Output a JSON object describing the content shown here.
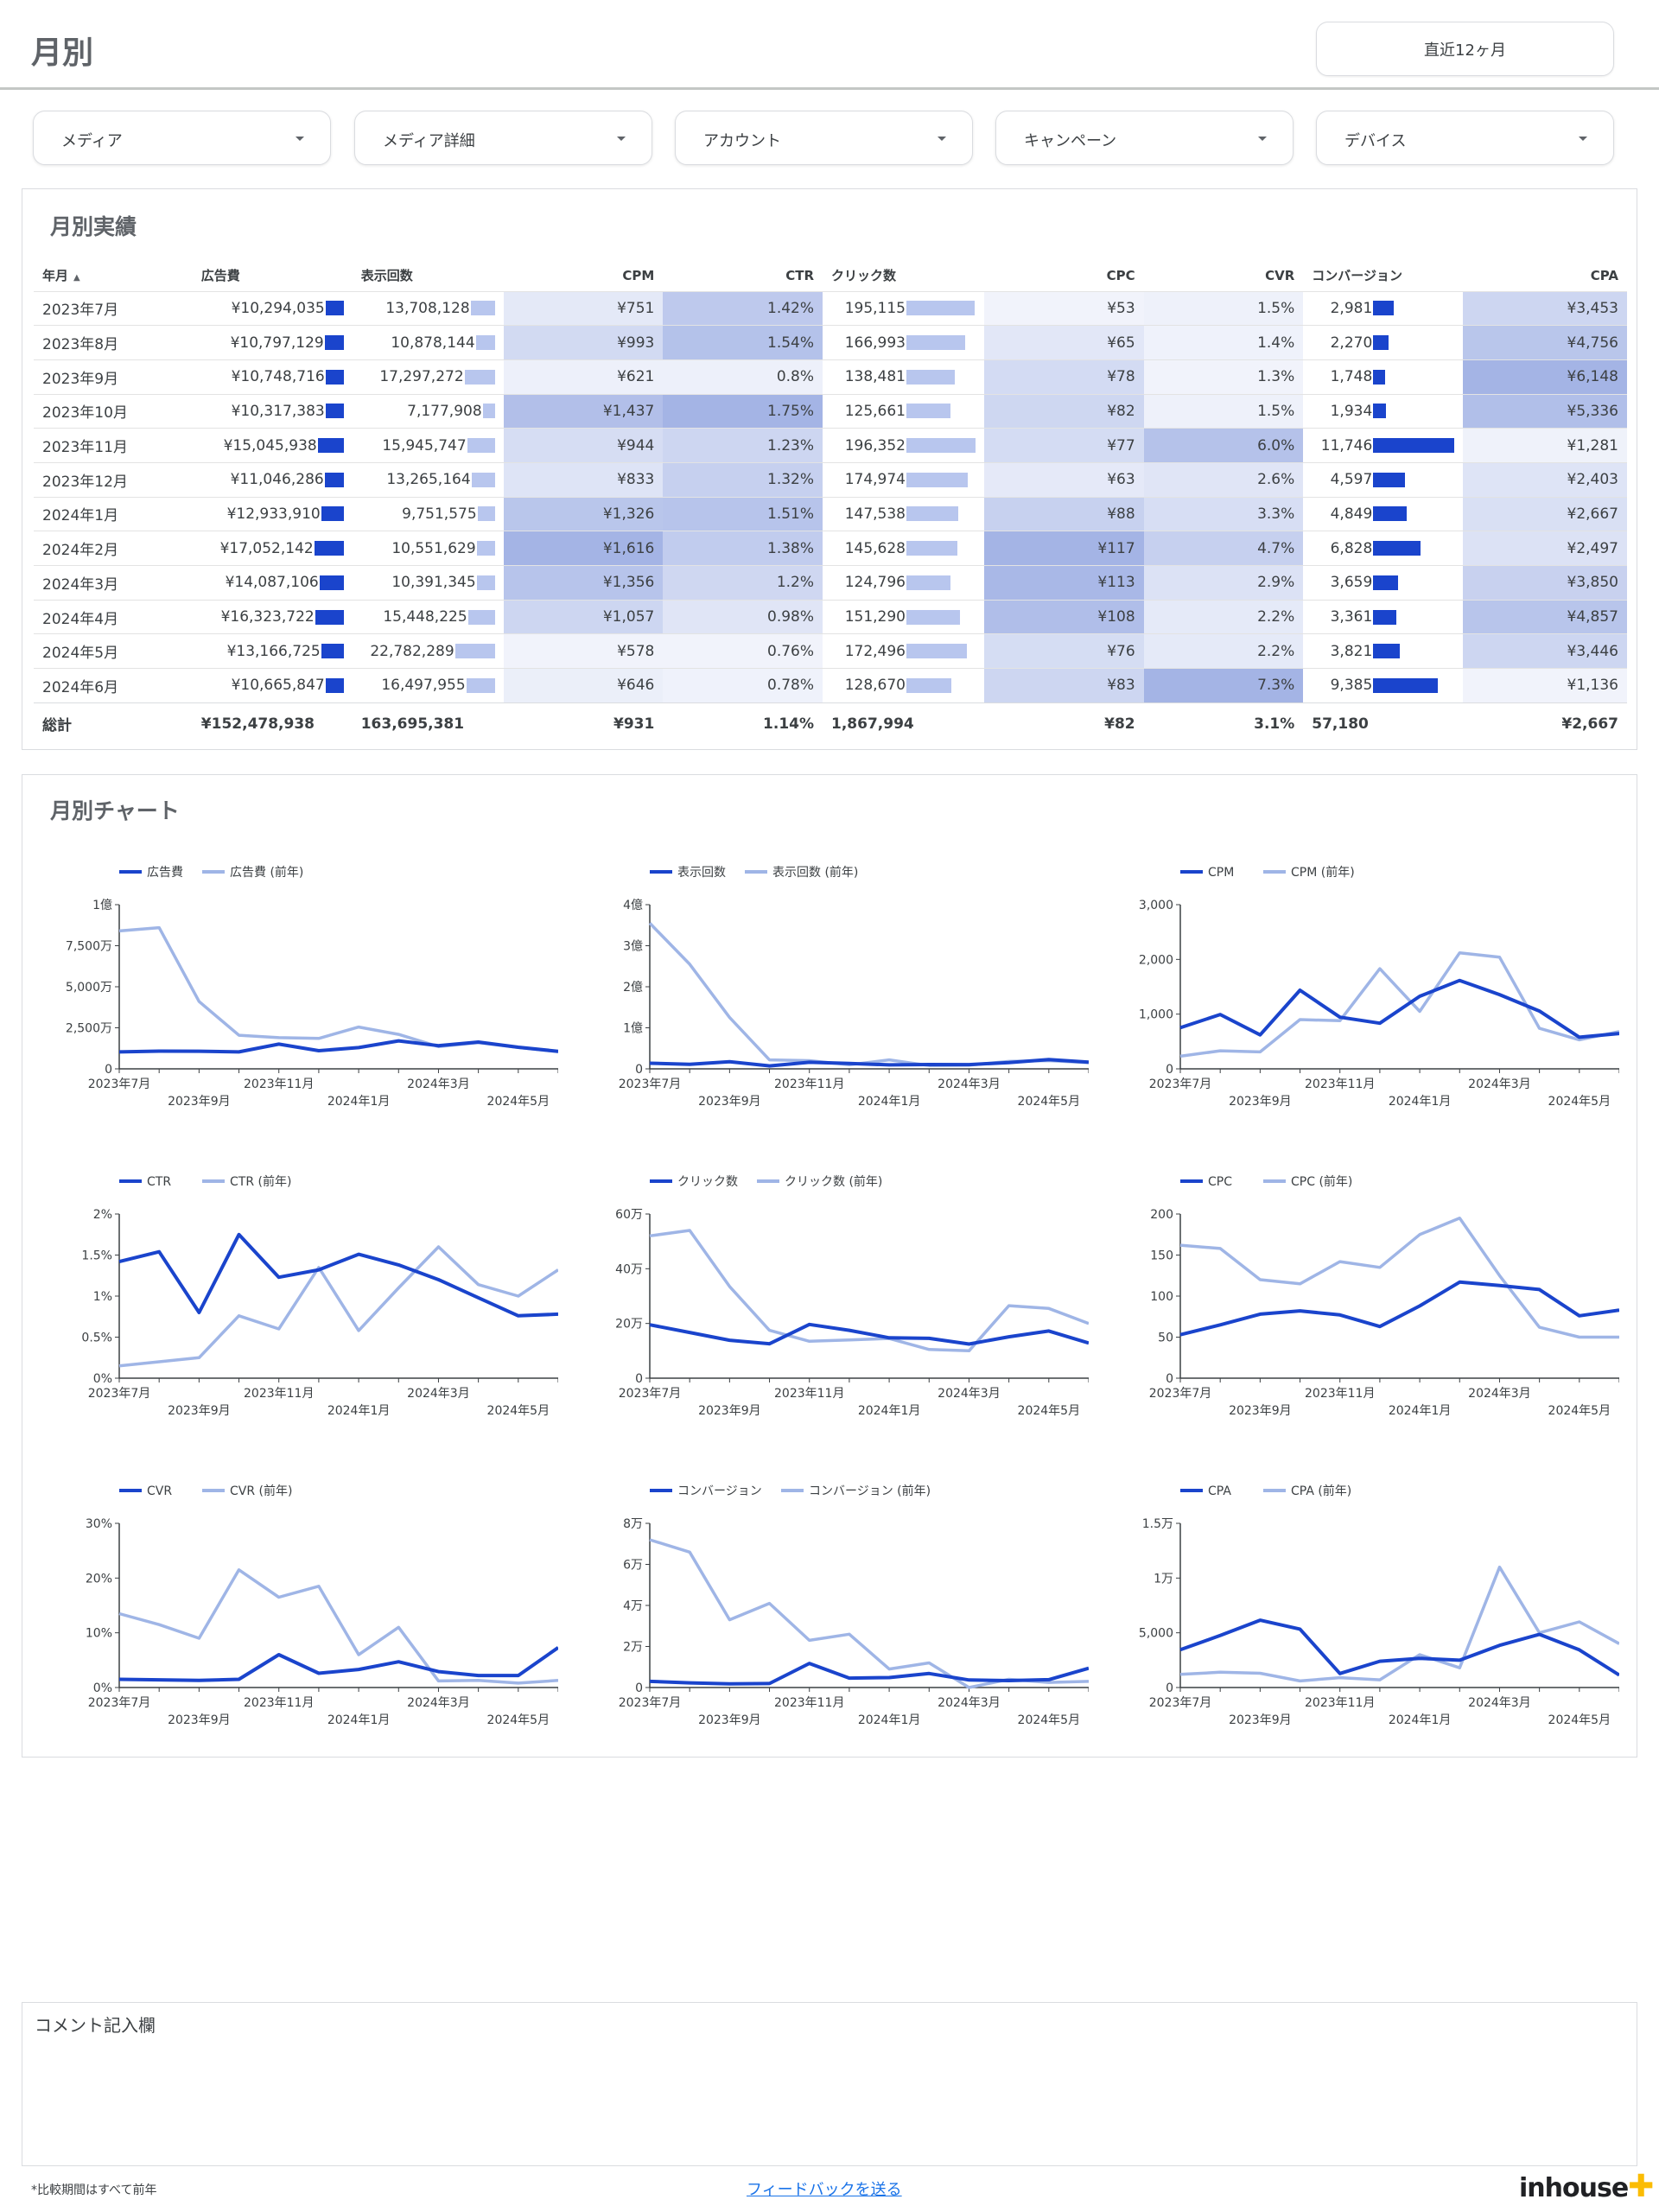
{
  "header": {
    "title": "月別",
    "period_button": "直近12ヶ月"
  },
  "filters": [
    {
      "label": "メディア"
    },
    {
      "label": "メディア詳細"
    },
    {
      "label": "アカウント"
    },
    {
      "label": "キャンペーン"
    },
    {
      "label": "デバイス"
    }
  ],
  "performance": {
    "title": "月別実績",
    "columns": [
      "年月",
      "広告費",
      "表示回数",
      "CPM",
      "CTR",
      "クリック数",
      "CPC",
      "CVR",
      "コンバージョン",
      "CPA"
    ],
    "rows": [
      {
        "month": "2023年7月",
        "cost": "¥10,294,035",
        "imp": "13,708,128",
        "cpm": "¥751",
        "ctr": "1.42%",
        "clicks": "195,115",
        "cpc": "¥53",
        "cvr": "1.5%",
        "conv": "2,981",
        "cpa": "¥3,453"
      },
      {
        "month": "2023年8月",
        "cost": "¥10,797,129",
        "imp": "10,878,144",
        "cpm": "¥993",
        "ctr": "1.54%",
        "clicks": "166,993",
        "cpc": "¥65",
        "cvr": "1.4%",
        "conv": "2,270",
        "cpa": "¥4,756"
      },
      {
        "month": "2023年9月",
        "cost": "¥10,748,716",
        "imp": "17,297,272",
        "cpm": "¥621",
        "ctr": "0.8%",
        "clicks": "138,481",
        "cpc": "¥78",
        "cvr": "1.3%",
        "conv": "1,748",
        "cpa": "¥6,148"
      },
      {
        "month": "2023年10月",
        "cost": "¥10,317,383",
        "imp": "7,177,908",
        "cpm": "¥1,437",
        "ctr": "1.75%",
        "clicks": "125,661",
        "cpc": "¥82",
        "cvr": "1.5%",
        "conv": "1,934",
        "cpa": "¥5,336"
      },
      {
        "month": "2023年11月",
        "cost": "¥15,045,938",
        "imp": "15,945,747",
        "cpm": "¥944",
        "ctr": "1.23%",
        "clicks": "196,352",
        "cpc": "¥77",
        "cvr": "6.0%",
        "conv": "11,746",
        "cpa": "¥1,281"
      },
      {
        "month": "2023年12月",
        "cost": "¥11,046,286",
        "imp": "13,265,164",
        "cpm": "¥833",
        "ctr": "1.32%",
        "clicks": "174,974",
        "cpc": "¥63",
        "cvr": "2.6%",
        "conv": "4,597",
        "cpa": "¥2,403"
      },
      {
        "month": "2024年1月",
        "cost": "¥12,933,910",
        "imp": "9,751,575",
        "cpm": "¥1,326",
        "ctr": "1.51%",
        "clicks": "147,538",
        "cpc": "¥88",
        "cvr": "3.3%",
        "conv": "4,849",
        "cpa": "¥2,667"
      },
      {
        "month": "2024年2月",
        "cost": "¥17,052,142",
        "imp": "10,551,629",
        "cpm": "¥1,616",
        "ctr": "1.38%",
        "clicks": "145,628",
        "cpc": "¥117",
        "cvr": "4.7%",
        "conv": "6,828",
        "cpa": "¥2,497"
      },
      {
        "month": "2024年3月",
        "cost": "¥14,087,106",
        "imp": "10,391,345",
        "cpm": "¥1,356",
        "ctr": "1.2%",
        "clicks": "124,796",
        "cpc": "¥113",
        "cvr": "2.9%",
        "conv": "3,659",
        "cpa": "¥3,850"
      },
      {
        "month": "2024年4月",
        "cost": "¥16,323,722",
        "imp": "15,448,225",
        "cpm": "¥1,057",
        "ctr": "0.98%",
        "clicks": "151,290",
        "cpc": "¥108",
        "cvr": "2.2%",
        "conv": "3,361",
        "cpa": "¥4,857"
      },
      {
        "month": "2024年5月",
        "cost": "¥13,166,725",
        "imp": "22,782,289",
        "cpm": "¥578",
        "ctr": "0.76%",
        "clicks": "172,496",
        "cpc": "¥76",
        "cvr": "2.2%",
        "conv": "3,821",
        "cpa": "¥3,446"
      },
      {
        "month": "2024年6月",
        "cost": "¥10,665,847",
        "imp": "16,497,955",
        "cpm": "¥646",
        "ctr": "0.78%",
        "clicks": "128,670",
        "cpc": "¥83",
        "cvr": "7.3%",
        "conv": "9,385",
        "cpa": "¥1,136"
      }
    ],
    "total": {
      "month": "総計",
      "cost": "¥152,478,938",
      "imp": "163,695,381",
      "cpm": "¥931",
      "ctr": "1.14%",
      "clicks": "1,867,994",
      "cpc": "¥82",
      "cvr": "3.1%",
      "conv": "57,180",
      "cpa": "¥2,667"
    }
  },
  "charts_section": {
    "title": "月別チャート",
    "x_ticks_top": [
      "2023年7月",
      "2023年11月",
      "2024年3月"
    ],
    "x_ticks_bottom": [
      "2023年9月",
      "2024年1月",
      "2024年5月"
    ]
  },
  "colors": {
    "current": "#1a44cc",
    "previous": "#9fb5e6",
    "bar_dark": "#1a44cc",
    "bar_light": "#b8c6ee"
  },
  "chart_data": [
    {
      "type": "line",
      "series": [
        {
          "name": "広告費",
          "values": [
            10294035,
            10797129,
            10748716,
            10317383,
            15045938,
            11046286,
            12933910,
            17052142,
            14087106,
            16323722,
            13166725,
            10665847
          ]
        },
        {
          "name": "広告費 (前年)",
          "values": [
            84000000,
            86000000,
            41000000,
            20500000,
            19000000,
            18500000,
            25500000,
            21000000,
            13500000,
            16000000,
            13000000,
            10500000
          ]
        }
      ],
      "yticks": [
        "0",
        "2,500万",
        "5,000万",
        "7,500万",
        "1億"
      ],
      "ylim": [
        0,
        100000000
      ]
    },
    {
      "type": "line",
      "series": [
        {
          "name": "表示回数",
          "values": [
            13708128,
            10878144,
            17297272,
            7177908,
            15945747,
            13265164,
            9751575,
            10551629,
            10391345,
            15448225,
            22782289,
            16497955
          ]
        },
        {
          "name": "表示回数 (前年)",
          "values": [
            355000000,
            255000000,
            125000000,
            22000000,
            20000000,
            10000000,
            22000000,
            8000000,
            9000000,
            18000000,
            20000000,
            15000000
          ]
        }
      ],
      "yticks": [
        "0",
        "1億",
        "2億",
        "3億",
        "4億"
      ],
      "ylim": [
        0,
        400000000
      ]
    },
    {
      "type": "line",
      "series": [
        {
          "name": "CPM",
          "values": [
            751,
            993,
            621,
            1437,
            944,
            833,
            1326,
            1616,
            1356,
            1057,
            578,
            646
          ]
        },
        {
          "name": "CPM (前年)",
          "values": [
            230,
            330,
            310,
            900,
            880,
            1830,
            1050,
            2120,
            2040,
            740,
            530,
            680
          ]
        }
      ],
      "yticks": [
        "0",
        "1,000",
        "2,000",
        "3,000"
      ],
      "ylim": [
        0,
        3000
      ]
    },
    {
      "type": "line",
      "series": [
        {
          "name": "CTR",
          "values": [
            1.42,
            1.54,
            0.8,
            1.75,
            1.23,
            1.32,
            1.51,
            1.38,
            1.2,
            0.98,
            0.76,
            0.78
          ]
        },
        {
          "name": "CTR (前年)",
          "values": [
            0.15,
            0.2,
            0.25,
            0.76,
            0.6,
            1.35,
            0.58,
            1.1,
            1.6,
            1.14,
            1.0,
            1.32
          ]
        }
      ],
      "yticks": [
        "0%",
        "0.5%",
        "1%",
        "1.5%",
        "2%"
      ],
      "ylim": [
        0,
        2
      ]
    },
    {
      "type": "line",
      "series": [
        {
          "name": "クリック数",
          "values": [
            195115,
            166993,
            138481,
            125661,
            196352,
            174974,
            147538,
            145628,
            124796,
            151290,
            172496,
            128670
          ]
        },
        {
          "name": "クリック数 (前年)",
          "values": [
            520000,
            540000,
            335000,
            175000,
            135000,
            140000,
            145000,
            105000,
            100000,
            265000,
            255000,
            200000
          ]
        }
      ],
      "yticks": [
        "0",
        "20万",
        "40万",
        "60万"
      ],
      "ylim": [
        0,
        600000
      ]
    },
    {
      "type": "line",
      "series": [
        {
          "name": "CPC",
          "values": [
            53,
            65,
            78,
            82,
            77,
            63,
            88,
            117,
            113,
            108,
            76,
            83
          ]
        },
        {
          "name": "CPC (前年)",
          "values": [
            162,
            158,
            120,
            115,
            142,
            135,
            175,
            195,
            125,
            62,
            50,
            50
          ]
        }
      ],
      "yticks": [
        "0",
        "50",
        "100",
        "150",
        "200"
      ],
      "ylim": [
        0,
        200
      ]
    },
    {
      "type": "line",
      "series": [
        {
          "name": "CVR",
          "values": [
            1.5,
            1.4,
            1.3,
            1.5,
            6.0,
            2.6,
            3.3,
            4.7,
            2.9,
            2.2,
            2.2,
            7.3
          ]
        },
        {
          "name": "CVR (前年)",
          "values": [
            13.5,
            11.5,
            9,
            21.5,
            16.5,
            18.5,
            6,
            11,
            1.2,
            1.3,
            0.8,
            1.3
          ]
        }
      ],
      "yticks": [
        "0%",
        "10%",
        "20%",
        "30%"
      ],
      "ylim": [
        0,
        30
      ]
    },
    {
      "type": "line",
      "series": [
        {
          "name": "コンバージョン",
          "values": [
            2981,
            2270,
            1748,
            1934,
            11746,
            4597,
            4849,
            6828,
            3659,
            3361,
            3821,
            9385
          ]
        },
        {
          "name": "コンバージョン (前年)",
          "values": [
            72000,
            66000,
            33000,
            41000,
            23000,
            26000,
            9000,
            12000,
            0,
            4000,
            2500,
            3000
          ]
        }
      ],
      "yticks": [
        "0",
        "2万",
        "4万",
        "6万",
        "8万"
      ],
      "ylim": [
        0,
        80000
      ]
    },
    {
      "type": "line",
      "series": [
        {
          "name": "CPA",
          "values": [
            3453,
            4756,
            6148,
            5336,
            1281,
            2403,
            2667,
            2497,
            3850,
            4857,
            3446,
            1136
          ]
        },
        {
          "name": "CPA (前年)",
          "values": [
            1200,
            1400,
            1300,
            600,
            900,
            700,
            3000,
            1800,
            11000,
            5000,
            6000,
            4000
          ]
        }
      ],
      "yticks": [
        "0",
        "5,000",
        "1万",
        "1.5万"
      ],
      "ylim": [
        0,
        15000
      ]
    }
  ],
  "comment": {
    "title": "コメント記入欄"
  },
  "footer": {
    "note": "*比較期間はすべて前年",
    "feedback": "フィードバックを送る",
    "logo": "inhouse"
  }
}
